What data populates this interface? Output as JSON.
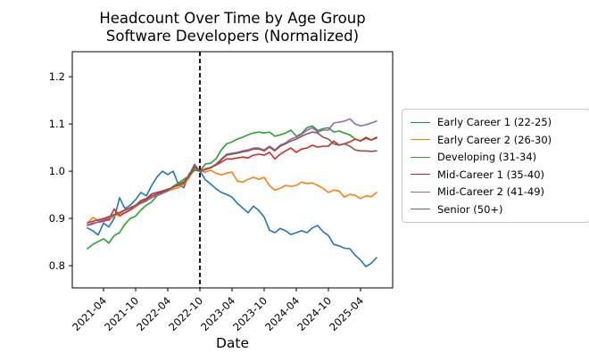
{
  "chart_data": {
    "type": "line",
    "title_line1": "Headcount Over Time by Age Group",
    "title_line2": "Software Developers (Normalized)",
    "xlabel": "Date",
    "ylim": [
      0.753,
      1.253
    ],
    "grid": false,
    "legend_position": "right-outside",
    "vline_x": "2022-10",
    "vline_style": "black dashed vertical line",
    "ytick_labels": [
      "0.8",
      "0.9",
      "1.0",
      "1.1",
      "1.2"
    ],
    "xtick_labels": [
      "2021-04",
      "2021-10",
      "2022-04",
      "2022-10",
      "2023-04",
      "2023-10",
      "2024-04",
      "2024-10",
      "2025-04"
    ],
    "x": [
      "2021-01",
      "2021-02",
      "2021-03",
      "2021-04",
      "2021-05",
      "2021-06",
      "2021-07",
      "2021-08",
      "2021-09",
      "2021-10",
      "2021-11",
      "2021-12",
      "2022-01",
      "2022-02",
      "2022-03",
      "2022-04",
      "2022-05",
      "2022-06",
      "2022-07",
      "2022-08",
      "2022-09",
      "2022-10",
      "2022-11",
      "2022-12",
      "2023-01",
      "2023-02",
      "2023-03",
      "2023-04",
      "2023-05",
      "2023-06",
      "2023-07",
      "2023-08",
      "2023-09",
      "2023-10",
      "2023-11",
      "2023-12",
      "2024-01",
      "2024-02",
      "2024-03",
      "2024-04",
      "2024-05",
      "2024-06",
      "2024-07",
      "2024-08",
      "2024-09",
      "2024-10",
      "2024-11",
      "2024-12",
      "2025-01",
      "2025-02",
      "2025-03",
      "2025-04",
      "2025-05",
      "2025-06",
      "2025-07"
    ],
    "series": [
      {
        "name": "Early Career 1 (22-25)",
        "color": "#1f77b4",
        "values": [
          0.88,
          0.874,
          0.865,
          0.89,
          0.882,
          0.9,
          0.944,
          0.921,
          0.928,
          0.94,
          0.955,
          0.948,
          0.97,
          0.988,
          1.0,
          0.993,
          1.0,
          0.972,
          0.965,
          0.995,
          1.005,
          1.0,
          0.982,
          0.973,
          0.963,
          0.955,
          0.951,
          0.945,
          0.932,
          0.922,
          0.912,
          0.926,
          0.917,
          0.903,
          0.875,
          0.87,
          0.879,
          0.874,
          0.866,
          0.87,
          0.874,
          0.87,
          0.88,
          0.885,
          0.872,
          0.864,
          0.845,
          0.842,
          0.837,
          0.836,
          0.822,
          0.812,
          0.798,
          0.805,
          0.817
        ]
      },
      {
        "name": "Early Career 2 (26-30)",
        "color": "#ff7f0e",
        "values": [
          0.89,
          0.902,
          0.896,
          0.898,
          0.896,
          0.905,
          0.91,
          0.912,
          0.918,
          0.924,
          0.934,
          0.94,
          0.948,
          0.95,
          0.955,
          0.958,
          0.962,
          0.965,
          0.972,
          0.986,
          1.008,
          1.0,
          0.998,
          1.002,
          0.996,
          0.992,
          0.996,
          0.998,
          0.979,
          0.977,
          0.983,
          0.987,
          0.983,
          0.987,
          0.97,
          0.96,
          0.964,
          0.97,
          0.968,
          0.97,
          0.977,
          0.974,
          0.975,
          0.97,
          0.964,
          0.955,
          0.96,
          0.958,
          0.945,
          0.951,
          0.949,
          0.942,
          0.948,
          0.946,
          0.955
        ]
      },
      {
        "name": "Developing (31-34)",
        "color": "#2ca02c",
        "values": [
          0.836,
          0.845,
          0.851,
          0.857,
          0.848,
          0.864,
          0.87,
          0.888,
          0.9,
          0.905,
          0.918,
          0.928,
          0.935,
          0.948,
          0.953,
          0.958,
          0.968,
          0.975,
          0.983,
          0.99,
          1.002,
          1.0,
          1.015,
          1.017,
          1.026,
          1.045,
          1.058,
          1.062,
          1.068,
          1.072,
          1.077,
          1.081,
          1.083,
          1.081,
          1.083,
          1.074,
          1.077,
          1.081,
          1.087,
          1.074,
          1.08,
          1.092,
          1.096,
          1.086,
          1.09,
          1.092,
          1.083,
          1.085,
          1.081,
          1.077,
          1.068,
          1.064,
          1.072,
          1.066,
          1.07
        ]
      },
      {
        "name": "Mid-Career 1 (35-40)",
        "color": "#d62728",
        "values": [
          0.886,
          0.89,
          0.892,
          0.894,
          0.898,
          0.92,
          0.905,
          0.912,
          0.918,
          0.928,
          0.938,
          0.942,
          0.952,
          0.955,
          0.958,
          0.962,
          0.966,
          0.97,
          0.975,
          0.99,
          1.01,
          1.0,
          1.005,
          1.008,
          1.013,
          1.019,
          1.026,
          1.026,
          1.028,
          1.03,
          1.028,
          1.034,
          1.036,
          1.034,
          1.04,
          1.026,
          1.036,
          1.043,
          1.049,
          1.04,
          1.047,
          1.049,
          1.055,
          1.051,
          1.053,
          1.053,
          1.064,
          1.055,
          1.058,
          1.062,
          1.068,
          1.064,
          1.07,
          1.066,
          1.072
        ]
      },
      {
        "name": "Mid-Career 2 (41-49)",
        "color": "#9467bd",
        "values": [
          0.885,
          0.888,
          0.893,
          0.897,
          0.902,
          0.907,
          0.912,
          0.917,
          0.922,
          0.927,
          0.932,
          0.937,
          0.944,
          0.949,
          0.954,
          0.96,
          0.966,
          0.972,
          0.978,
          0.992,
          1.015,
          1.0,
          1.004,
          1.008,
          1.015,
          1.026,
          1.036,
          1.038,
          1.04,
          1.043,
          1.045,
          1.049,
          1.049,
          1.045,
          1.053,
          1.045,
          1.055,
          1.06,
          1.068,
          1.072,
          1.078,
          1.087,
          1.092,
          1.083,
          1.087,
          1.087,
          1.102,
          1.104,
          1.106,
          1.111,
          1.1,
          1.096,
          1.098,
          1.102,
          1.106
        ]
      },
      {
        "name": "Senior (50+)",
        "color": "#8c564b",
        "values": [
          0.891,
          0.894,
          0.897,
          0.9,
          0.904,
          0.908,
          0.913,
          0.918,
          0.923,
          0.928,
          0.934,
          0.94,
          0.948,
          0.952,
          0.956,
          0.961,
          0.966,
          0.971,
          0.977,
          0.991,
          1.012,
          1.0,
          1.003,
          1.007,
          1.013,
          1.024,
          1.034,
          1.036,
          1.038,
          1.041,
          1.043,
          1.047,
          1.047,
          1.043,
          1.051,
          1.043,
          1.053,
          1.058,
          1.064,
          1.068,
          1.074,
          1.079,
          1.083,
          1.081,
          1.072,
          1.068,
          1.058,
          1.055,
          1.058,
          1.053,
          1.045,
          1.043,
          1.043,
          1.042,
          1.043
        ]
      }
    ]
  }
}
